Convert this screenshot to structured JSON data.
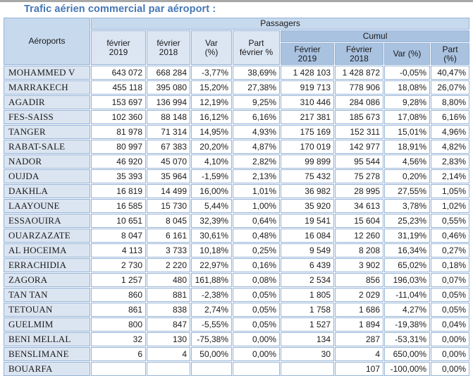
{
  "title": "Trafic aérien commercial par aéroport :",
  "table": {
    "corner_header": "Aéroports",
    "group_header": "Passagers",
    "cumul_header": "Cumul",
    "month_headers": [
      "février\n2019",
      "février\n2018",
      "Var\n(%)",
      "Part\nfévrier %"
    ],
    "cumul_subheaders": [
      "Février\n2019",
      "Février\n2018",
      "Var (%)",
      "Part\n(%)"
    ],
    "rows": [
      {
        "airport": "MOHAMMED V",
        "values": [
          "643 072",
          "668 284",
          "-3,77%",
          "38,69%",
          "1 428 103",
          "1 428 872",
          "-0,05%",
          "40,47%"
        ]
      },
      {
        "airport": "MARRAKECH",
        "values": [
          "455 118",
          "395 080",
          "15,20%",
          "27,38%",
          "919 713",
          "778 906",
          "18,08%",
          "26,07%"
        ]
      },
      {
        "airport": "AGADIR",
        "values": [
          "153 697",
          "136 994",
          "12,19%",
          "9,25%",
          "310 446",
          "284 086",
          "9,28%",
          "8,80%"
        ]
      },
      {
        "airport": "FES-SAISS",
        "values": [
          "102 360",
          "88 148",
          "16,12%",
          "6,16%",
          "217 381",
          "185 673",
          "17,08%",
          "6,16%"
        ]
      },
      {
        "airport": "TANGER",
        "values": [
          "81 978",
          "71 314",
          "14,95%",
          "4,93%",
          "175 169",
          "152 311",
          "15,01%",
          "4,96%"
        ]
      },
      {
        "airport": "RABAT-SALE",
        "values": [
          "80 997",
          "67 383",
          "20,20%",
          "4,87%",
          "170 019",
          "142 977",
          "18,91%",
          "4,82%"
        ]
      },
      {
        "airport": "NADOR",
        "values": [
          "46 920",
          "45 070",
          "4,10%",
          "2,82%",
          "99 899",
          "95 544",
          "4,56%",
          "2,83%"
        ]
      },
      {
        "airport": "OUJDA",
        "values": [
          "35 393",
          "35 964",
          "-1,59%",
          "2,13%",
          "75 432",
          "75 278",
          "0,20%",
          "2,14%"
        ]
      },
      {
        "airport": "DAKHLA",
        "values": [
          "16 819",
          "14 499",
          "16,00%",
          "1,01%",
          "36 982",
          "28 995",
          "27,55%",
          "1,05%"
        ]
      },
      {
        "airport": "LAAYOUNE",
        "values": [
          "16 585",
          "15 730",
          "5,44%",
          "1,00%",
          "35 920",
          "34 613",
          "3,78%",
          "1,02%"
        ]
      },
      {
        "airport": "ESSAOUIRA",
        "values": [
          "10 651",
          "8 045",
          "32,39%",
          "0,64%",
          "19 541",
          "15 604",
          "25,23%",
          "0,55%"
        ]
      },
      {
        "airport": "OUARZAZATE",
        "values": [
          "8 047",
          "6 161",
          "30,61%",
          "0,48%",
          "16 084",
          "12 260",
          "31,19%",
          "0,46%"
        ]
      },
      {
        "airport": "AL HOCEIMA",
        "values": [
          "4 113",
          "3 733",
          "10,18%",
          "0,25%",
          "9 549",
          "8 208",
          "16,34%",
          "0,27%"
        ]
      },
      {
        "airport": "ERRACHIDIA",
        "values": [
          "2 730",
          "2 220",
          "22,97%",
          "0,16%",
          "6 439",
          "3 902",
          "65,02%",
          "0,18%"
        ]
      },
      {
        "airport": "ZAGORA",
        "values": [
          "1 257",
          "480",
          "161,88%",
          "0,08%",
          "2 534",
          "856",
          "196,03%",
          "0,07%"
        ]
      },
      {
        "airport": "TAN TAN",
        "values": [
          "860",
          "881",
          "-2,38%",
          "0,05%",
          "1 805",
          "2 029",
          "-11,04%",
          "0,05%"
        ]
      },
      {
        "airport": "TETOUAN",
        "values": [
          "861",
          "838",
          "2,74%",
          "0,05%",
          "1 758",
          "1 686",
          "4,27%",
          "0,05%"
        ]
      },
      {
        "airport": "GUELMIM",
        "values": [
          "800",
          "847",
          "-5,55%",
          "0,05%",
          "1 527",
          "1 894",
          "-19,38%",
          "0,04%"
        ]
      },
      {
        "airport": "BENI MELLAL",
        "values": [
          "32",
          "130",
          "-75,38%",
          "0,00%",
          "134",
          "287",
          "-53,31%",
          "0,00%"
        ]
      },
      {
        "airport": "BENSLIMANE",
        "values": [
          "6",
          "4",
          "50,00%",
          "0,00%",
          "30",
          "4",
          "650,00%",
          "0,00%"
        ]
      },
      {
        "airport": "BOUARFA",
        "values": [
          "",
          "",
          "",
          "",
          "",
          "107",
          "-100,00%",
          "0,00%"
        ]
      }
    ]
  },
  "colors": {
    "title": "#4576b5",
    "border": "#95b3d7",
    "header_band": "#c7d9ed",
    "subheader_bg": "#dce6f3",
    "cumul_bg": "#a9c2e0",
    "airport_cell_bg": "#dbe5f1"
  }
}
